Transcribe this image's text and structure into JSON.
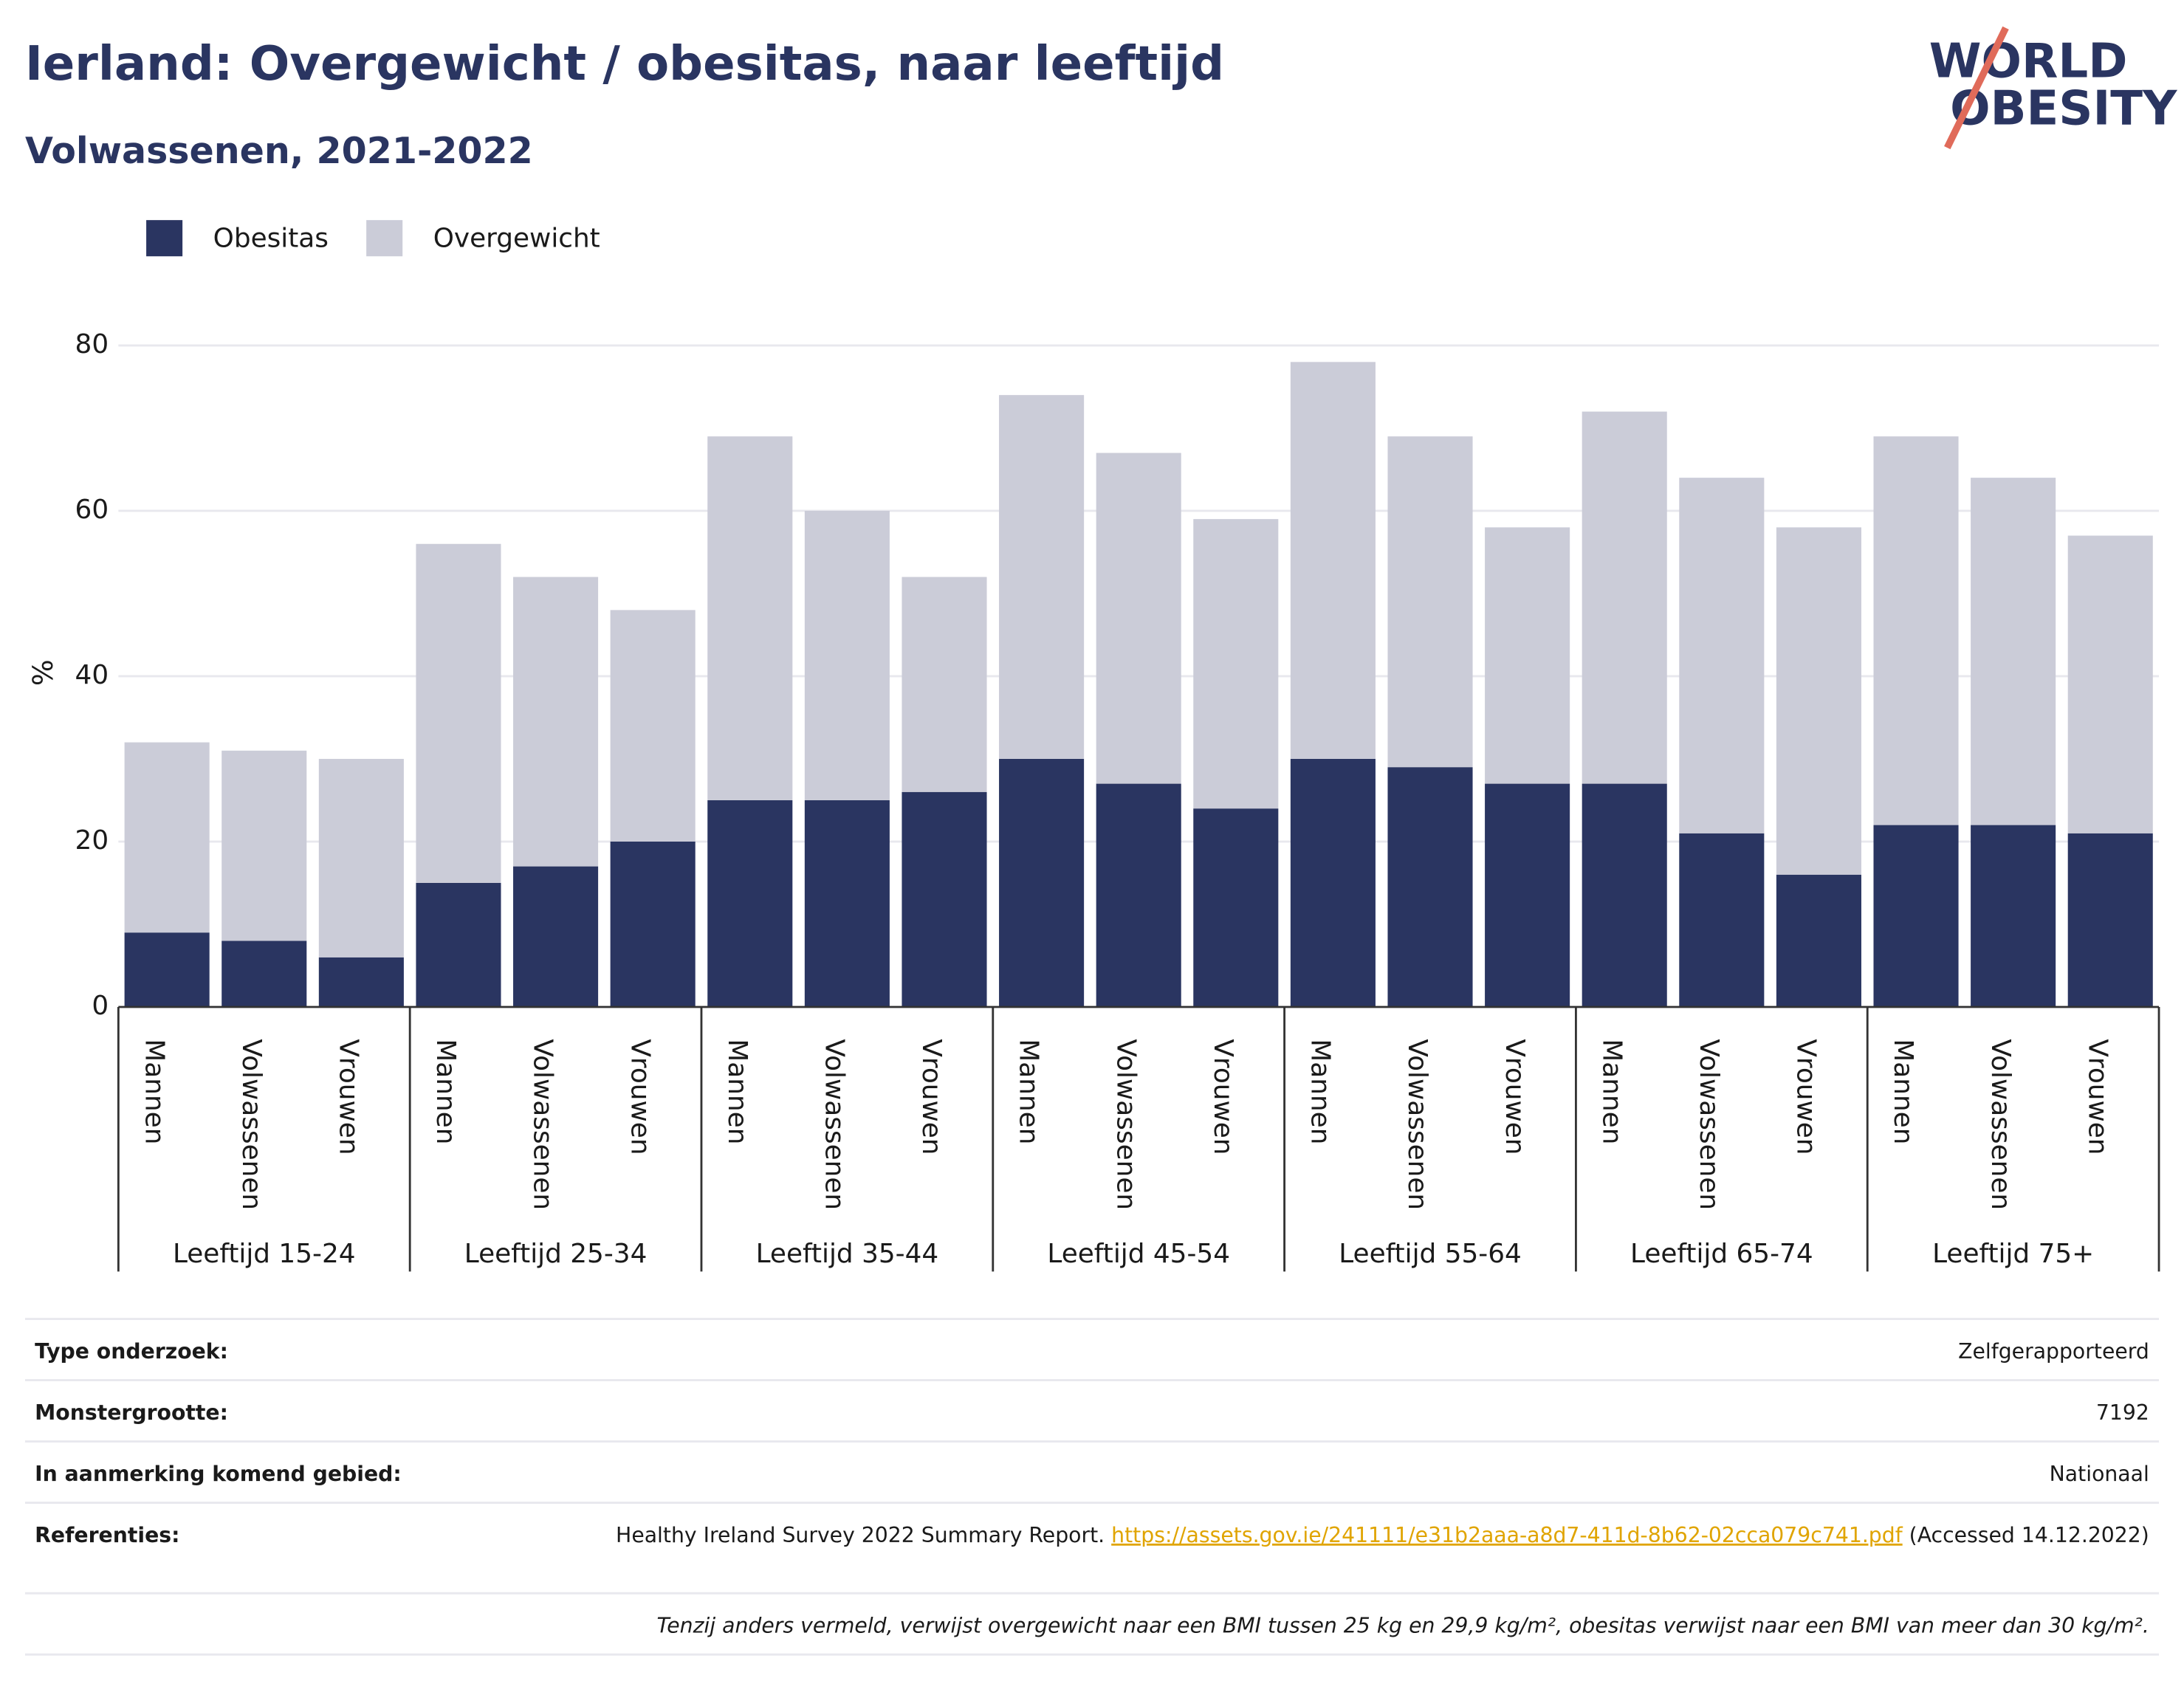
{
  "logo": [
    "WORLD",
    "OBESITY"
  ],
  "chart_data": {
    "type": "stacked_bar",
    "title": "Ierland: Overgewicht / obesitas, naar leeftijd",
    "subtitle": "Volwassenen, 2021-2022",
    "y_label": "%",
    "groups": [
      "Leeftijd 15-24",
      "Leeftijd 25-34",
      "Leeftijd 35-44",
      "Leeftijd 45-54",
      "Leeftijd 55-64",
      "Leeftijd 65-74",
      "Leeftijd 75+"
    ],
    "categories": [
      "Mannen",
      "Volwassenen",
      "Vrouwen",
      "Mannen",
      "Volwassenen",
      "Vrouwen",
      "Mannen",
      "Volwassenen",
      "Vrouwen",
      "Mannen",
      "Volwassenen",
      "Vrouwen",
      "Mannen",
      "Volwassenen",
      "Vrouwen",
      "Mannen",
      "Volwassenen",
      "Vrouwen",
      "Mannen",
      "Volwassenen",
      "Vrouwen"
    ],
    "series": [
      {
        "name": "Obesitas",
        "color": "#2a3561",
        "values": [
          9,
          8,
          6,
          15,
          17,
          20,
          25,
          25,
          26,
          30,
          27,
          24,
          30,
          29,
          27,
          27,
          21,
          16,
          22,
          22,
          21
        ]
      },
      {
        "name": "Overgewicht",
        "color": "#cbccd8",
        "values": [
          23,
          23,
          24,
          41,
          35,
          28,
          44,
          35,
          26,
          44,
          40,
          35,
          48,
          40,
          31,
          45,
          43,
          42,
          47,
          42,
          36
        ]
      }
    ],
    "ylim": [
      0,
      80
    ],
    "yticks": [
      0,
      20,
      40,
      60,
      80
    ],
    "grid": true,
    "legend": "top-left"
  },
  "footer": {
    "rows": [
      [
        "Type onderzoek:",
        "Zelfgerapporteerd"
      ],
      [
        "Monstergrootte:",
        "7192"
      ],
      [
        "In aanmerking komend gebied:",
        "Nationaal"
      ]
    ],
    "references_label": "Referenties:",
    "references_text": "Healthy Ireland Survey 2022 Summary Report.",
    "references_link": "https://assets.gov.ie/241111/e31b2aaa-a8d7-411d-8b62-02cca079c741.pdf",
    "references_accessed": "(Accessed 14.12.2022)",
    "note": "Tenzij anders vermeld, verwijst overgewicht naar een BMI tussen 25 kg en 29,9 kg/m², obesitas verwijst naar een BMI van meer dan 30 kg/m²."
  }
}
